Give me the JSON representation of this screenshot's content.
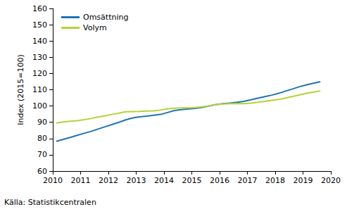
{
  "chart_data": {
    "type": "line",
    "y_label": "Index (2015=100)",
    "source": "Källa: Statistikcentralen",
    "x": [
      2010.125,
      2010.375,
      2010.625,
      2010.875,
      2011.125,
      2011.375,
      2011.625,
      2011.875,
      2012.125,
      2012.375,
      2012.625,
      2012.875,
      2013.125,
      2013.375,
      2013.625,
      2013.875,
      2014.125,
      2014.375,
      2014.625,
      2014.875,
      2015.125,
      2015.375,
      2015.625,
      2015.875,
      2016.125,
      2016.375,
      2016.625,
      2016.875,
      2017.125,
      2017.375,
      2017.625,
      2017.875,
      2018.125,
      2018.375,
      2018.625,
      2018.875,
      2019.125,
      2019.375,
      2019.625
    ],
    "series": [
      {
        "name": "Omsättning",
        "color": "#1f74b7",
        "values": [
          78.3,
          79.5,
          80.7,
          82.0,
          83.2,
          84.4,
          85.8,
          87.2,
          88.6,
          90.0,
          91.5,
          92.7,
          93.3,
          93.8,
          94.3,
          94.8,
          96.0,
          97.2,
          97.8,
          98.2,
          98.5,
          99.2,
          100.0,
          100.9,
          101.4,
          101.8,
          102.3,
          102.9,
          103.8,
          104.8,
          105.8,
          106.7,
          107.8,
          109.2,
          110.5,
          111.9,
          113.0,
          114.0,
          115.0
        ]
      },
      {
        "name": "Volym",
        "color": "#b5d334",
        "values": [
          89.5,
          90.2,
          90.6,
          91.0,
          91.6,
          92.3,
          93.2,
          94.0,
          94.8,
          95.6,
          96.5,
          96.6,
          96.7,
          96.9,
          97.0,
          97.5,
          98.3,
          98.6,
          98.8,
          98.9,
          99.1,
          99.5,
          100.1,
          100.9,
          101.2,
          101.5,
          101.6,
          101.5,
          101.8,
          102.3,
          102.9,
          103.5,
          104.0,
          104.9,
          105.9,
          106.9,
          107.8,
          108.6,
          109.3
        ]
      }
    ],
    "xlim": [
      2010,
      2020
    ],
    "xticks": [
      2010,
      2011,
      2012,
      2013,
      2014,
      2015,
      2016,
      2017,
      2018,
      2019,
      2020
    ],
    "ylim": [
      60,
      160
    ],
    "yticks": [
      60,
      70,
      80,
      90,
      100,
      110,
      120,
      130,
      140,
      150,
      160
    ],
    "grid": false,
    "legend": "upper left"
  }
}
